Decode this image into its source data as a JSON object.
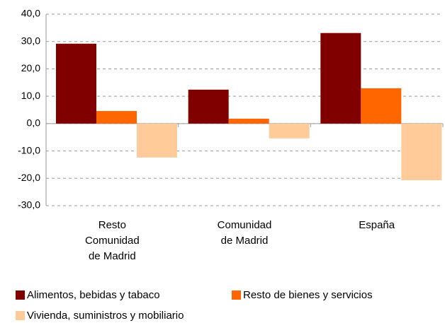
{
  "chart_data": {
    "type": "bar",
    "categories": [
      "Resto Comunidad de Madrid",
      "Comunidad de Madrid",
      "España"
    ],
    "series": [
      {
        "name": "Alimentos, bebidas y tabaco",
        "color": "#800000",
        "values": [
          29.2,
          12.4,
          33.1
        ]
      },
      {
        "name": "Resto de bienes y servicios",
        "color": "#ff6600",
        "values": [
          4.6,
          1.8,
          12.9
        ]
      },
      {
        "name": "Vivienda, suministros y mobiliario",
        "color": "#ffcc99",
        "values": [
          -12.4,
          -5.4,
          -20.7
        ]
      }
    ],
    "ylim": [
      -30,
      40
    ],
    "yticks": [
      {
        "value": -30,
        "label": "-30,0"
      },
      {
        "value": -20,
        "label": "-20,0"
      },
      {
        "value": -10,
        "label": "-10,0"
      },
      {
        "value": 0,
        "label": "0,0"
      },
      {
        "value": 10,
        "label": "10,0"
      },
      {
        "value": 20,
        "label": "20,0"
      },
      {
        "value": 30,
        "label": "30,0"
      },
      {
        "value": 40,
        "label": "40,0"
      }
    ],
    "grid": true,
    "legend": "bottom"
  }
}
